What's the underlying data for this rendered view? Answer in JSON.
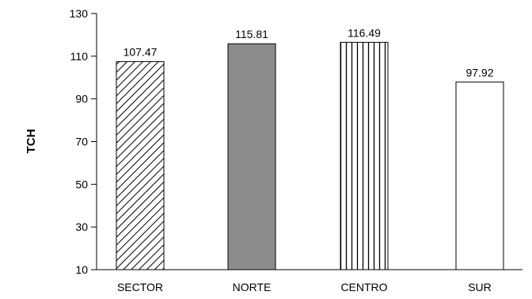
{
  "chart_data": {
    "type": "bar",
    "title": "",
    "xlabel": "",
    "ylabel": "TCH",
    "categories": [
      "SECTOR",
      "NORTE",
      "CENTRO",
      "SUR"
    ],
    "values": [
      107.47,
      115.81,
      116.49,
      97.92
    ],
    "value_labels": [
      "107.47",
      "115.81",
      "116.49",
      "97.92"
    ],
    "ylim": [
      10,
      130
    ],
    "yticks": [
      10,
      30,
      50,
      70,
      90,
      110,
      130
    ],
    "grid": false,
    "legend": "none",
    "bar_styles": [
      {
        "fill": "diagonal-hatch",
        "color": "#000000"
      },
      {
        "fill": "solid",
        "color": "#8c8c8c"
      },
      {
        "fill": "vertical-stripes",
        "color": "#000000"
      },
      {
        "fill": "solid",
        "color": "#ffffff"
      }
    ]
  }
}
